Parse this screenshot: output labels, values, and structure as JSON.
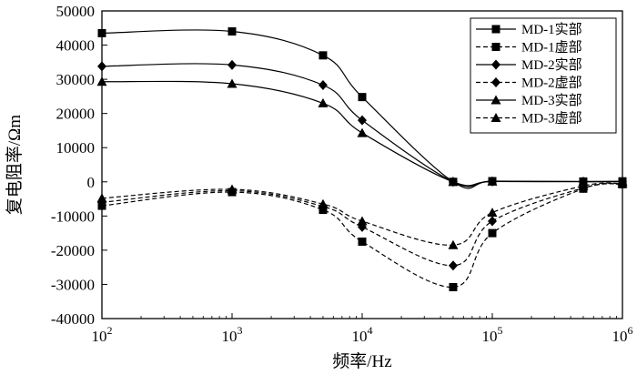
{
  "chart_data": {
    "type": "line",
    "title": "",
    "xlabel": "频率/Hz",
    "ylabel": "复电阻率/Ωm",
    "xscale": "log",
    "xlim": [
      100,
      1000000
    ],
    "ylim": [
      -40000,
      50000
    ],
    "x_ticks": [
      {
        "base": "10",
        "exp": "2"
      },
      {
        "base": "10",
        "exp": "3"
      },
      {
        "base": "10",
        "exp": "4"
      },
      {
        "base": "10",
        "exp": "5"
      },
      {
        "base": "10",
        "exp": "6"
      }
    ],
    "y_ticks": [
      "50000",
      "40000",
      "30000",
      "20000",
      "10000",
      "0",
      "-10000",
      "-20000",
      "-30000",
      "-40000"
    ],
    "legend_position": "top-right",
    "series": [
      {
        "name": "MD-1实部",
        "marker": "square",
        "dash": "solid",
        "points": [
          [
            100,
            43500
          ],
          [
            1000,
            44000
          ],
          [
            5000,
            37000
          ],
          [
            10000,
            24800
          ],
          [
            50000,
            0
          ],
          [
            100000,
            200
          ],
          [
            500000,
            100
          ],
          [
            1000000,
            150
          ]
        ]
      },
      {
        "name": "MD-1虚部",
        "marker": "square",
        "dash": "dashed",
        "points": [
          [
            100,
            -7000
          ],
          [
            1000,
            -3000
          ],
          [
            5000,
            -8200
          ],
          [
            10000,
            -17500
          ],
          [
            50000,
            -30800
          ],
          [
            100000,
            -15000
          ],
          [
            500000,
            -2000
          ],
          [
            1000000,
            -700
          ]
        ]
      },
      {
        "name": "MD-2实部",
        "marker": "diamond",
        "dash": "solid",
        "points": [
          [
            100,
            33800
          ],
          [
            1000,
            34200
          ],
          [
            5000,
            28300
          ],
          [
            10000,
            18000
          ],
          [
            50000,
            0
          ],
          [
            100000,
            100
          ],
          [
            500000,
            50
          ],
          [
            1000000,
            100
          ]
        ]
      },
      {
        "name": "MD-2虚部",
        "marker": "diamond",
        "dash": "dashed",
        "points": [
          [
            100,
            -6000
          ],
          [
            1000,
            -2600
          ],
          [
            5000,
            -7200
          ],
          [
            10000,
            -13200
          ],
          [
            50000,
            -24500
          ],
          [
            100000,
            -11500
          ],
          [
            500000,
            -1800
          ],
          [
            1000000,
            -600
          ]
        ]
      },
      {
        "name": "MD-3实部",
        "marker": "triangle",
        "dash": "solid",
        "points": [
          [
            100,
            29300
          ],
          [
            1000,
            28700
          ],
          [
            5000,
            23000
          ],
          [
            10000,
            14300
          ],
          [
            50000,
            0
          ],
          [
            100000,
            100
          ],
          [
            500000,
            50
          ],
          [
            1000000,
            50
          ]
        ]
      },
      {
        "name": "MD-3虚部",
        "marker": "triangle",
        "dash": "dashed",
        "points": [
          [
            100,
            -4800
          ],
          [
            1000,
            -2200
          ],
          [
            5000,
            -6500
          ],
          [
            10000,
            -11500
          ],
          [
            50000,
            -18500
          ],
          [
            100000,
            -9000
          ],
          [
            500000,
            -1200
          ],
          [
            1000000,
            -500
          ]
        ]
      }
    ]
  }
}
